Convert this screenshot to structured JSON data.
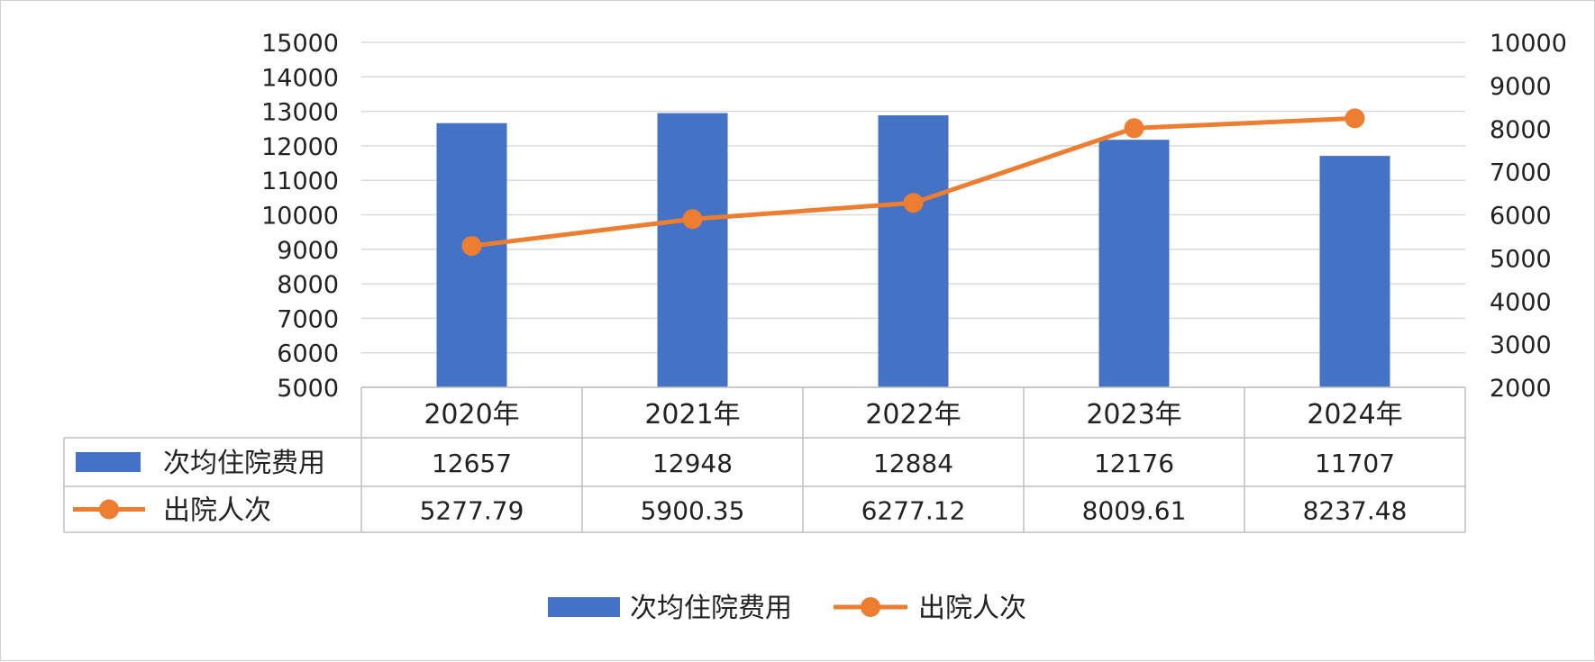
{
  "chart_data": {
    "type": "bar",
    "categories": [
      "2020年",
      "2021年",
      "2022年",
      "2023年",
      "2024年"
    ],
    "series": [
      {
        "name": "次均住院费用",
        "type": "bar",
        "axis": "left",
        "color": "#4472C4",
        "values": [
          12657,
          12948,
          12884,
          12176,
          11707
        ]
      },
      {
        "name": "出院人次",
        "type": "line",
        "axis": "right",
        "color": "#ED7D31",
        "values": [
          5277.79,
          5900.35,
          6277.12,
          8009.61,
          8237.48
        ]
      }
    ],
    "left_axis": {
      "ylim": [
        5000,
        15000
      ],
      "ticks": [
        "5000",
        "6000",
        "7000",
        "8000",
        "9000",
        "10000",
        "11000",
        "12000",
        "13000",
        "14000",
        "15000"
      ]
    },
    "right_axis": {
      "ylim": [
        2000,
        10000
      ],
      "ticks": [
        "2000",
        "3000",
        "4000",
        "5000",
        "6000",
        "7000",
        "8000",
        "9000",
        "10000"
      ]
    },
    "table": {
      "rows": [
        {
          "label": "次均住院费用",
          "values": [
            "12657",
            "12948",
            "12884",
            "12176",
            "11707"
          ]
        },
        {
          "label": "出院人次",
          "values": [
            "5277.79",
            "5900.35",
            "6277.12",
            "8009.61",
            "8237.48"
          ]
        }
      ]
    },
    "legend": {
      "position": "bottom",
      "items": [
        "次均住院费用",
        "出院人次"
      ]
    },
    "grid": true
  }
}
